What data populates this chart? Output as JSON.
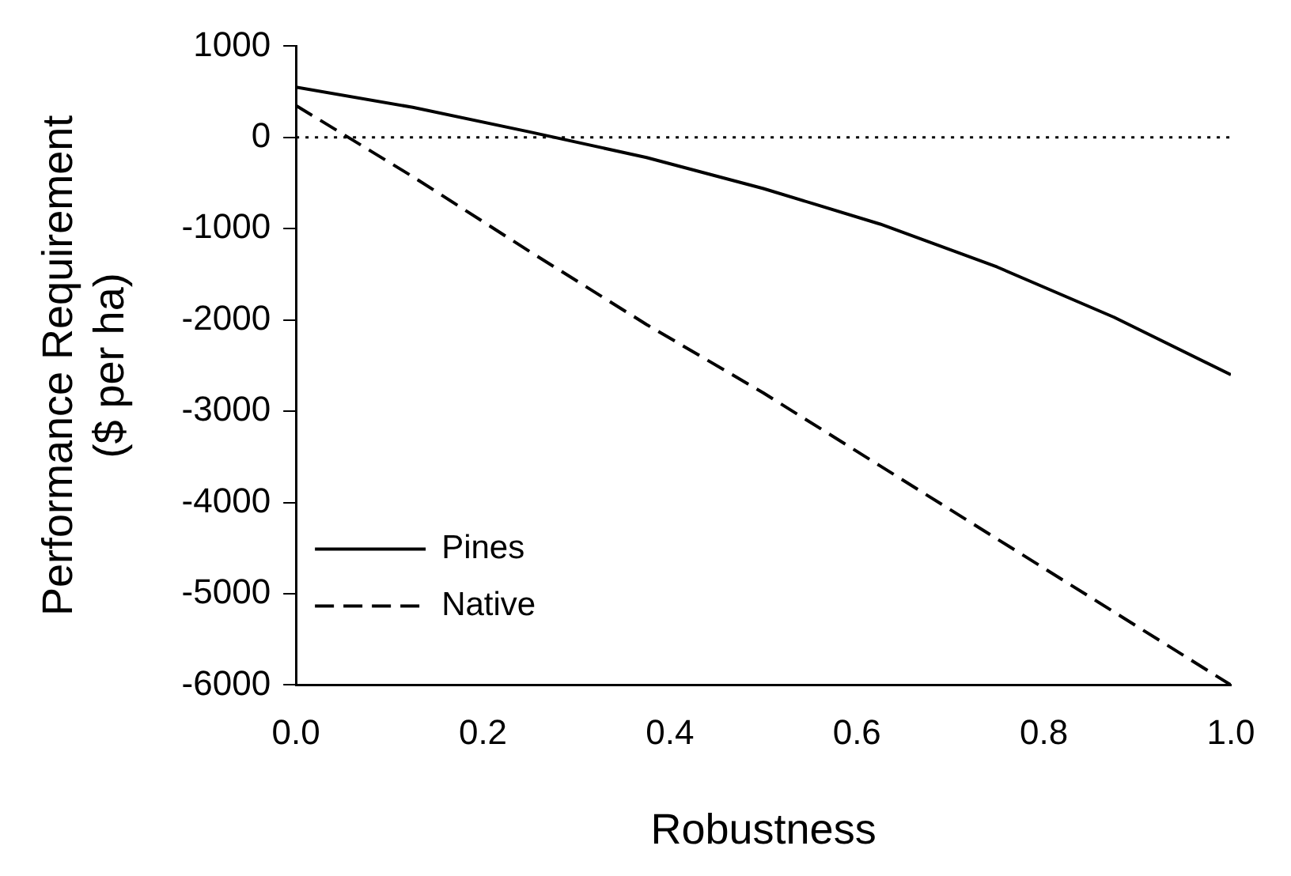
{
  "chart_data": {
    "type": "line",
    "xlabel": "Robustness",
    "ylabel": "Performance Requirement\n($ per ha)",
    "x": [
      0,
      0.125,
      0.25,
      0.375,
      0.5,
      0.625,
      0.75,
      0.875,
      1.0
    ],
    "series": [
      {
        "name": "Pines",
        "color": "#000000",
        "line_style": "solid",
        "values": [
          550,
          330,
          60,
          -220,
          -560,
          -950,
          -1420,
          -1970,
          -2600
        ]
      },
      {
        "name": "Native",
        "color": "#000000",
        "line_style": "dashed",
        "values": [
          350,
          -430,
          -1250,
          -2050,
          -2800,
          -3600,
          -4400,
          -5200,
          -6000
        ]
      }
    ],
    "xlim": [
      0,
      1
    ],
    "xticks": [
      {
        "value": 0,
        "label": "0.0"
      },
      {
        "value": 0.2,
        "label": "0.2"
      },
      {
        "value": 0.4,
        "label": "0.4"
      },
      {
        "value": 0.6,
        "label": "0.6"
      },
      {
        "value": 0.8,
        "label": "0.8"
      },
      {
        "value": 1,
        "label": "1.0"
      }
    ],
    "ylim": [
      -6000,
      1000
    ],
    "yticks": [
      -6000,
      -5000,
      -4000,
      -3000,
      -2000,
      -1000,
      0,
      1000
    ],
    "ref_lines": [
      {
        "axis": "y",
        "value": 0,
        "line_style": "dotted",
        "color": "#000000"
      }
    ],
    "grid": false,
    "legend": "bottom left",
    "marker": "none"
  }
}
